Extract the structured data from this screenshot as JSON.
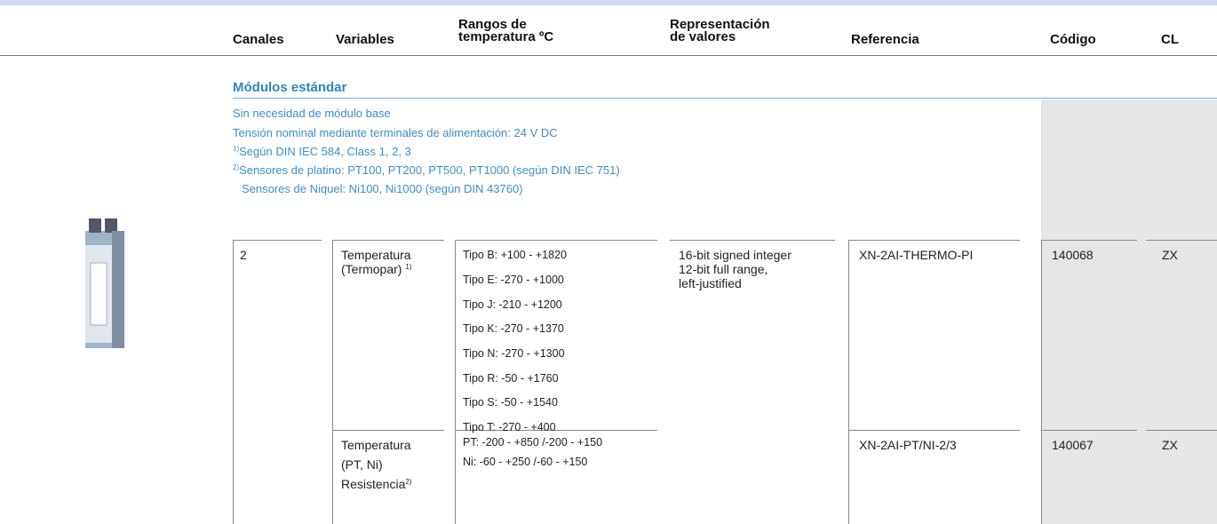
{
  "header": {
    "columns": [
      [
        "Canales"
      ],
      [
        "Variables"
      ],
      [
        "Rangos de",
        "temperatura ºC"
      ],
      [
        "Representación",
        "de valores"
      ],
      [
        "Referencia"
      ],
      [
        "Código"
      ],
      [
        "CL"
      ]
    ]
  },
  "section": {
    "title": "Módulos estándar",
    "notes": [
      {
        "text": "Sin necesidad de módulo base"
      },
      {
        "text": "Tensión nominal mediante terminales de alimentación: 24 V DC"
      },
      {
        "mark": "1)",
        "text": "Según DIN IEC 584, Class 1, 2, 3"
      },
      {
        "mark": "2)",
        "text": "Sensores de platino: PT100, PT200, PT500, PT1000 (según DIN IEC 751)"
      },
      {
        "text": "Sensores de Niquel: Ni100, Ni1000 (según DIN 43760)"
      }
    ]
  },
  "rows": [
    {
      "channels": "2",
      "variable": [
        "Temperatura",
        "(Termopar)"
      ],
      "variable_mark": "1)",
      "ranges": [
        "Tipo B: +100 - +1820",
        "Tipo E: -270 - +1000",
        "Tipo J: -210 - +1200",
        "Tipo K: -270 - +1370",
        "Tipo N: -270 - +1300",
        "Tipo R: -50 - +1760",
        "Tipo S: -50 - +1540",
        "Tipo T: -270 - +400"
      ],
      "representation": [
        "16-bit signed integer",
        "12-bit full range,",
        "left-justified"
      ],
      "reference": "XN-2AI-THERMO-PI",
      "code": "140068",
      "cl": "ZX"
    },
    {
      "variable": [
        "Temperatura",
        "(PT, Ni)",
        "Resistencia"
      ],
      "variable_mark": "2)",
      "ranges": [
        "PT: -200 - +850 /-200 - +150",
        "Ni: -60 - +250 /-60 - +150"
      ],
      "reference": "XN-2AI-PT/NI-2/3",
      "code": "140067",
      "cl": "ZX"
    }
  ]
}
